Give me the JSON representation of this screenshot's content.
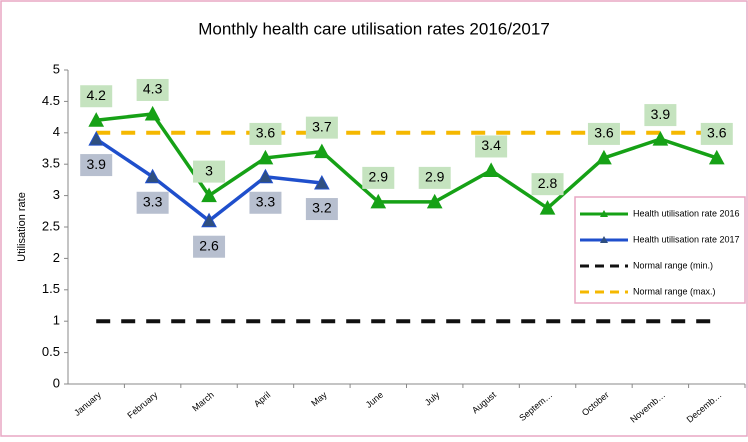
{
  "chart_data": {
    "type": "line",
    "title": "Monthly health care utilisation rates 2016/2017",
    "y_label": "Utilisation rate",
    "categories": [
      "January",
      "February",
      "March",
      "April",
      "May",
      "June",
      "July",
      "August",
      "Septem…",
      "October",
      "Novemb…",
      "Decemb…"
    ],
    "series": [
      {
        "name": "Health utilisation rate 2016",
        "color": "#16a116",
        "marker": "triangle",
        "marker_color": "#16a116",
        "label_fill": "#c5e3bf",
        "line_style": "solid",
        "values": [
          4.2,
          4.3,
          3,
          3.6,
          3.7,
          2.9,
          2.9,
          3.4,
          2.8,
          3.6,
          3.9,
          3.6
        ]
      },
      {
        "name": "Health utilisation rate 2017",
        "color": "#1f4fcc",
        "marker": "triangle",
        "marker_color": "#2f4f80",
        "label_fill": "#b7bfcf",
        "line_style": "solid",
        "values": [
          3.9,
          3.3,
          2.6,
          3.3,
          3.2,
          null,
          null,
          null,
          null,
          null,
          null,
          null
        ]
      },
      {
        "name": "Normal range (min.)",
        "color": "#111111",
        "line_style": "dashed",
        "values": [
          1,
          1,
          1,
          1,
          1,
          1,
          1,
          1,
          1,
          1,
          1,
          1
        ]
      },
      {
        "name": "Normal range (max.)",
        "color": "#f5b800",
        "line_style": "dashed",
        "values": [
          4,
          4,
          4,
          4,
          4,
          4,
          4,
          4,
          4,
          4,
          4,
          4
        ]
      }
    ],
    "ylim": [
      0,
      5
    ],
    "yticks": [
      0,
      0.5,
      1,
      1.5,
      2,
      2.5,
      3,
      3.5,
      4,
      4.5,
      5
    ],
    "grid": false,
    "legend": "right"
  }
}
